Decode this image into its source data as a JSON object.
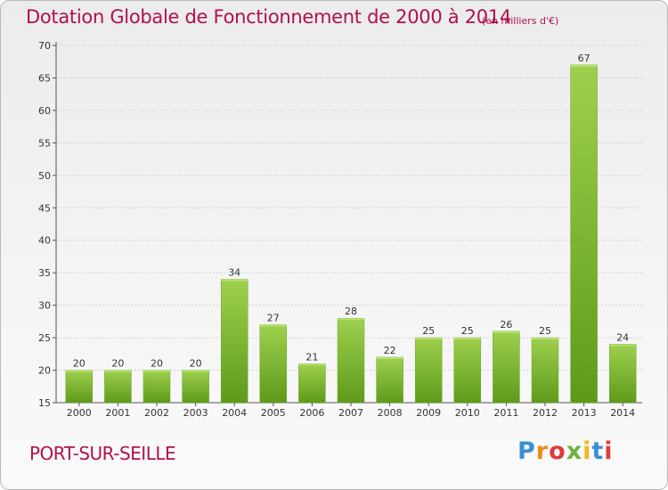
{
  "header": {
    "title": "Dotation Globale de Fonctionnement de 2000 à 2014",
    "subtitle": "(en milliers d'€)"
  },
  "footer": {
    "place": "PORT-SUR-SEILLE",
    "logo": [
      "P",
      "r",
      "o",
      "x",
      "i",
      "t",
      "i"
    ]
  },
  "colors": {
    "title": "#b01050",
    "bar_top": "#9ed04e",
    "bar_bottom": "#5e9a1a",
    "grid": "#d0d0d0"
  },
  "chart_data": {
    "type": "bar",
    "title": "Dotation Globale de Fonctionnement de 2000 à 2014",
    "subtitle": "(en milliers d'€)",
    "categories": [
      "2000",
      "2001",
      "2002",
      "2003",
      "2004",
      "2005",
      "2006",
      "2007",
      "2008",
      "2009",
      "2010",
      "2011",
      "2012",
      "2013",
      "2014"
    ],
    "values": [
      20,
      20,
      20,
      20,
      34,
      27,
      21,
      28,
      22,
      25,
      25,
      26,
      25,
      67,
      24
    ],
    "ylim": [
      15,
      70
    ],
    "yticks": [
      15,
      20,
      25,
      30,
      35,
      40,
      45,
      50,
      55,
      60,
      65,
      70
    ],
    "grid": true
  }
}
